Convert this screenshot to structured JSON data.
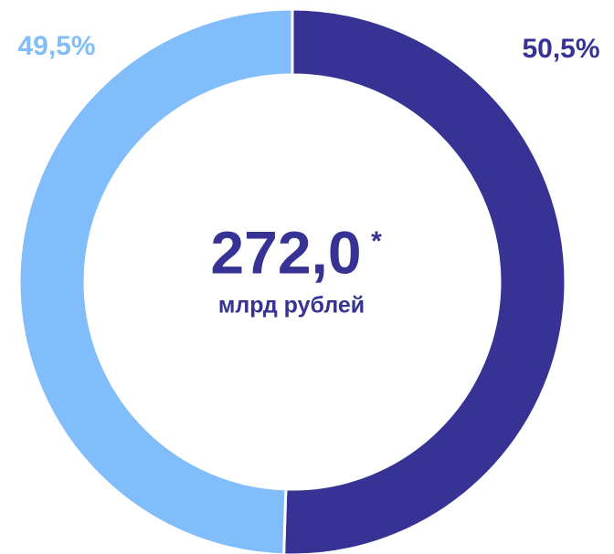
{
  "chart_data": {
    "type": "donut",
    "values": [
      50.5,
      49.5
    ],
    "value_labels": [
      "50,5%",
      "49,5%"
    ],
    "colors": [
      "#363394",
      "#80bdfa"
    ],
    "center_value": "272,0",
    "center_mark": "*",
    "center_unit": "млрд рублей"
  }
}
